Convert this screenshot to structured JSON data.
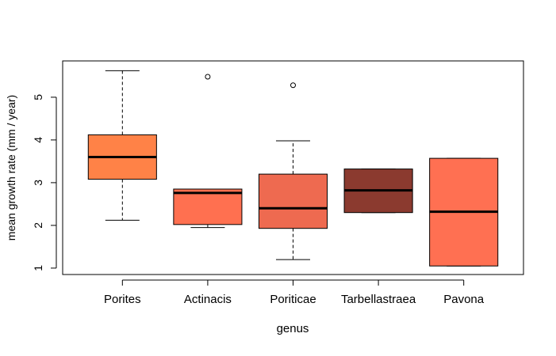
{
  "chart_data": {
    "type": "box",
    "title": "",
    "xlabel": "genus",
    "ylabel": "mean growth rate (mm / year)",
    "ylim": [
      0.85,
      5.85
    ],
    "y_ticks": [
      1,
      2,
      3,
      4,
      5
    ],
    "categories": [
      "Porites",
      "Actinacis",
      "Poriticae",
      "Tarbellastraea",
      "Pavona"
    ],
    "boxes": [
      {
        "category": "Porites",
        "whisker_low": 2.12,
        "q1": 3.08,
        "median": 3.6,
        "q3": 4.12,
        "whisker_high": 5.62,
        "outliers": [],
        "color": "#FF8247"
      },
      {
        "category": "Actinacis",
        "whisker_low": 1.95,
        "q1": 2.02,
        "median": 2.76,
        "q3": 2.85,
        "whisker_high": 2.85,
        "outliers": [
          5.48
        ],
        "color": "#FF7050"
      },
      {
        "category": "Poriticae",
        "whisker_low": 1.2,
        "q1": 1.93,
        "median": 2.4,
        "q3": 3.2,
        "whisker_high": 3.98,
        "outliers": [
          5.28
        ],
        "color": "#EE6A50"
      },
      {
        "category": "Tarbellastraea",
        "whisker_low": 2.3,
        "q1": 2.3,
        "median": 2.82,
        "q3": 3.32,
        "whisker_high": 3.32,
        "outliers": [],
        "color": "#8B3A2F"
      },
      {
        "category": "Pavona",
        "whisker_low": 1.05,
        "q1": 1.05,
        "median": 2.32,
        "q3": 3.57,
        "whisker_high": 3.57,
        "outliers": [],
        "color": "#FF7052"
      }
    ],
    "grid": false,
    "legend": "none"
  }
}
